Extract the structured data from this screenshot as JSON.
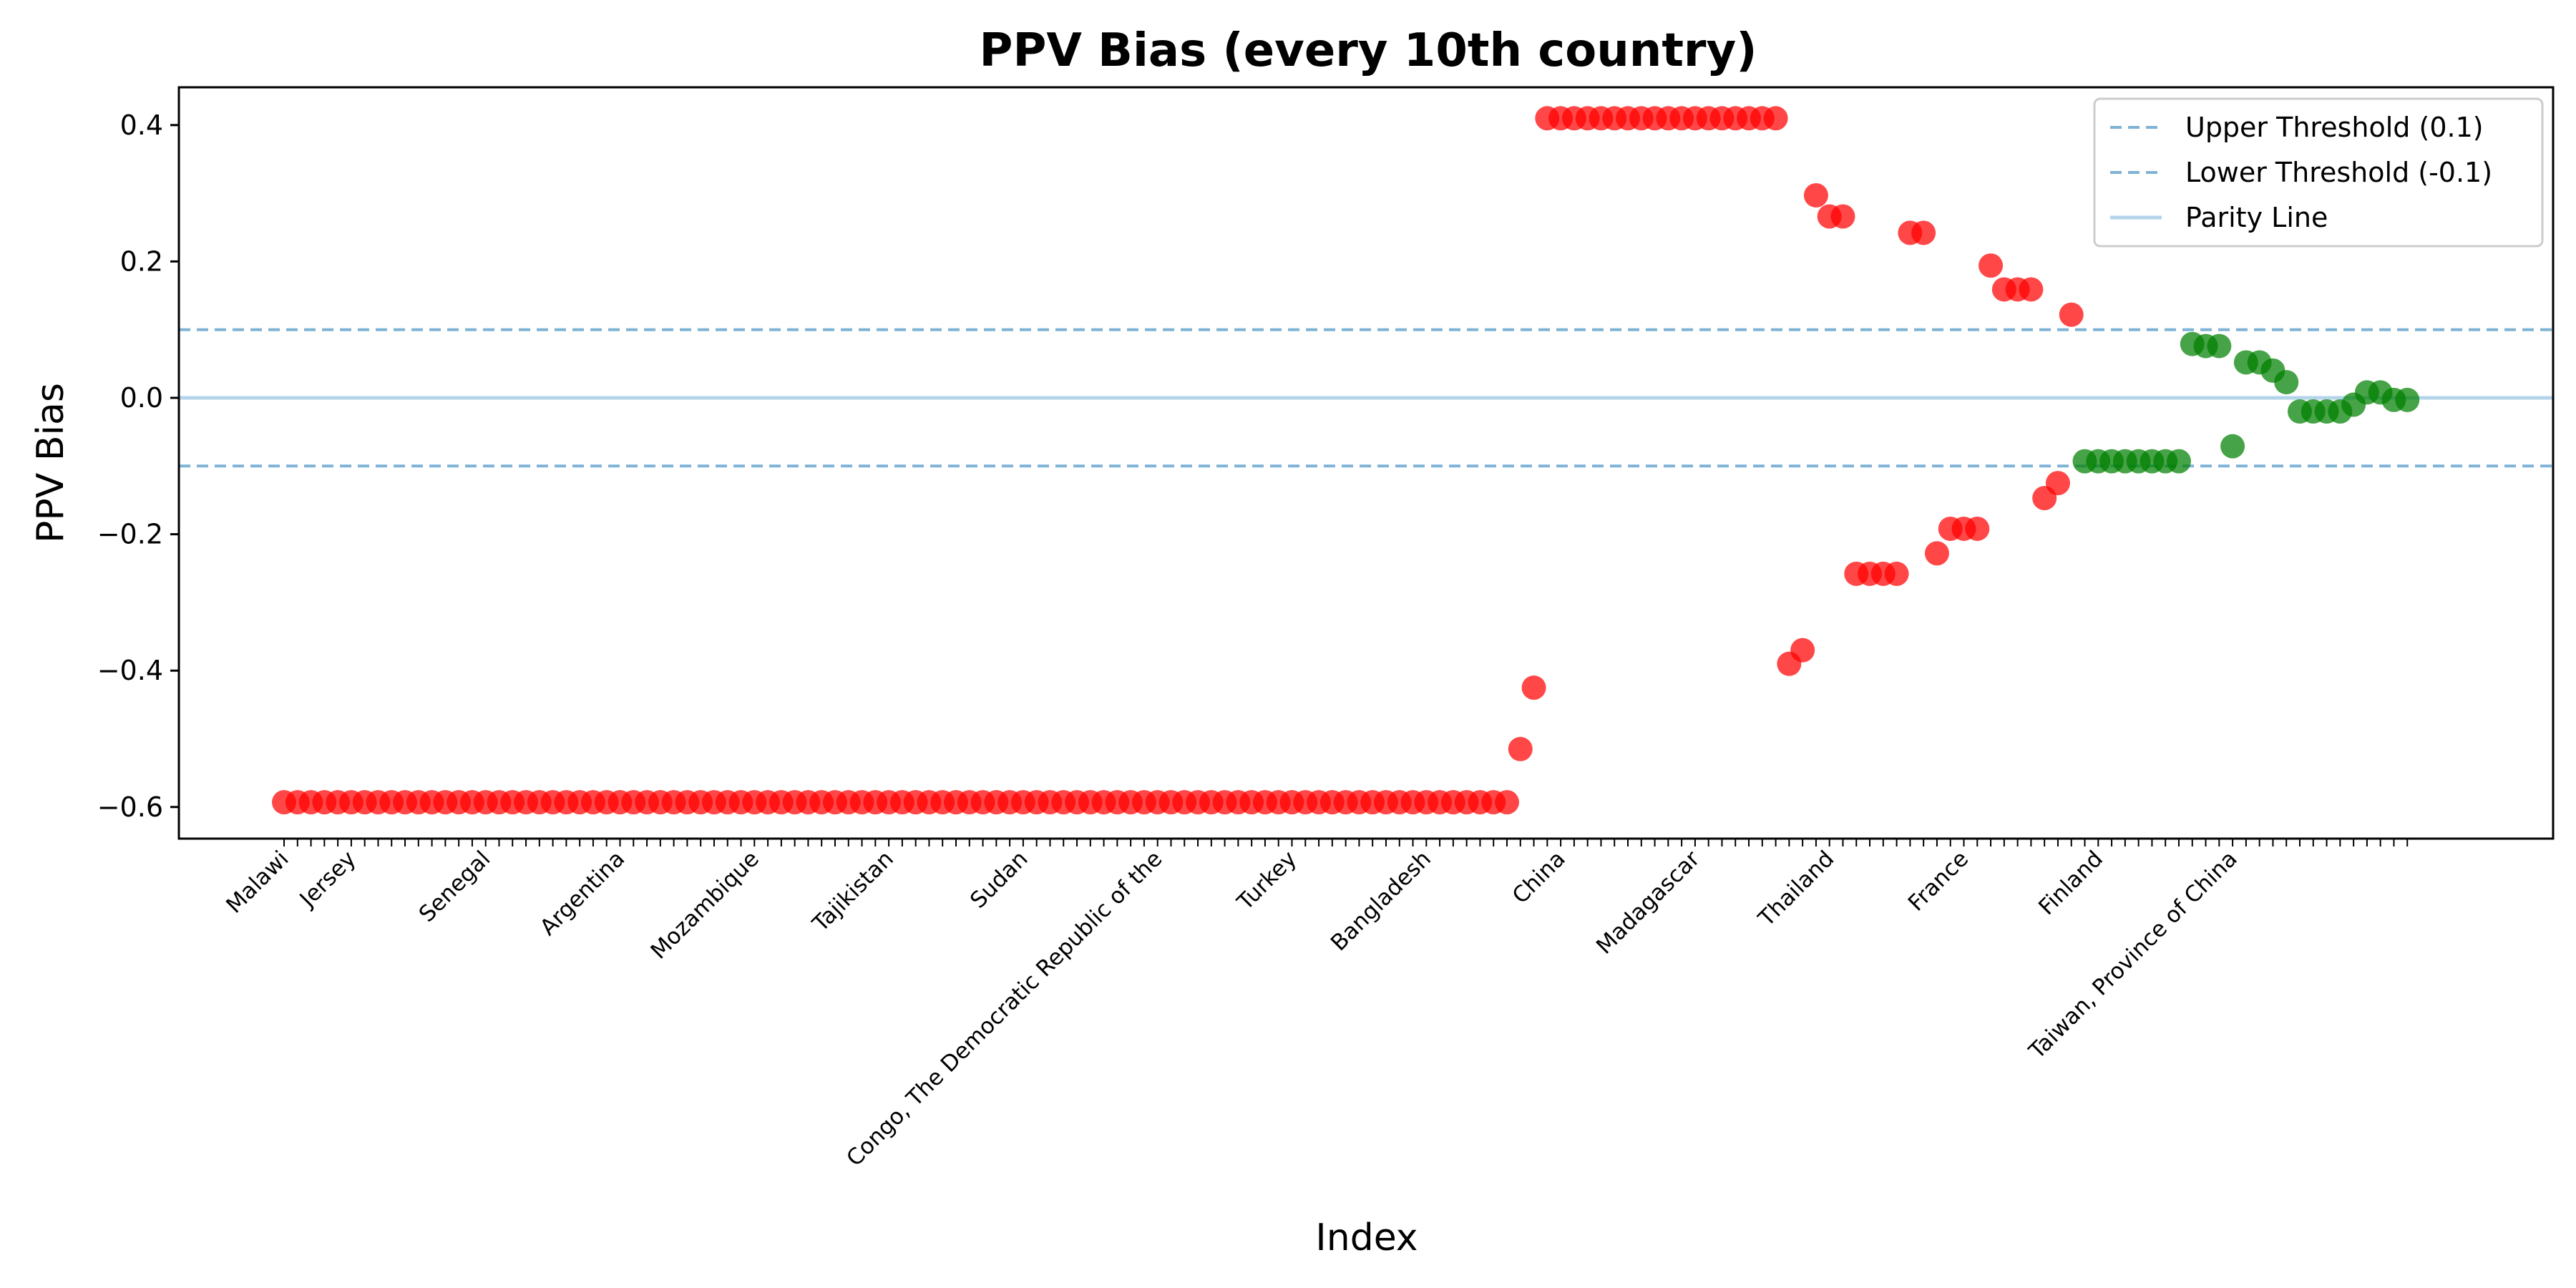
{
  "chart_data": {
    "type": "scatter",
    "title": "PPV Bias (every 10th country)",
    "xlabel": "Index",
    "ylabel": "PPV Bias",
    "ylim": [
      -0.64,
      0.46
    ],
    "yticks": [
      -0.6,
      -0.4,
      -0.2,
      0.0,
      0.2,
      0.4
    ],
    "ytick_labels": [
      "−0.6",
      "−0.4",
      "−0.2",
      "0.0",
      "0.2",
      "0.4"
    ],
    "grid": false,
    "legend_position": "top-right",
    "colors": {
      "above_threshold": "#ff0000",
      "within_threshold": "#008000",
      "threshold_line": "#7fb3d5",
      "parity_line": "#b3d4ea"
    },
    "reference_lines": [
      {
        "name": "Upper Threshold (0.1)",
        "y": 0.1,
        "style": "dashed"
      },
      {
        "name": "Lower Threshold (-0.1)",
        "y": -0.1,
        "style": "dashed"
      },
      {
        "name": "Parity Line",
        "y": 0.0,
        "style": "solid"
      }
    ],
    "x_tick_labels_legible": [
      {
        "index": 0,
        "label": "Malawi"
      },
      {
        "index": 5,
        "label": "Jersey"
      },
      {
        "index": 15,
        "label": "Senegal"
      },
      {
        "index": 25,
        "label": "Argentina"
      },
      {
        "index": 35,
        "label": "Mozambique"
      },
      {
        "index": 45,
        "label": "Tajikistan"
      },
      {
        "index": 55,
        "label": "Sudan"
      },
      {
        "index": 65,
        "label": "Congo, The Democratic Republic of the"
      },
      {
        "index": 75,
        "label": "Turkey"
      },
      {
        "index": 85,
        "label": "Bangladesh"
      },
      {
        "index": 95,
        "label": "China"
      },
      {
        "index": 105,
        "label": "Madagascar"
      },
      {
        "index": 115,
        "label": "Thailand"
      },
      {
        "index": 125,
        "label": "France"
      },
      {
        "index": 135,
        "label": "Finland"
      },
      {
        "index": 145,
        "label": "Taiwan, Province of China"
      }
    ],
    "points": [
      {
        "x": 0,
        "y": -0.593
      },
      {
        "x": 1,
        "y": -0.593
      },
      {
        "x": 2,
        "y": -0.593
      },
      {
        "x": 3,
        "y": -0.593
      },
      {
        "x": 4,
        "y": -0.593
      },
      {
        "x": 5,
        "y": -0.593
      },
      {
        "x": 6,
        "y": -0.593
      },
      {
        "x": 7,
        "y": -0.593
      },
      {
        "x": 8,
        "y": -0.593
      },
      {
        "x": 9,
        "y": -0.593
      },
      {
        "x": 10,
        "y": -0.593
      },
      {
        "x": 11,
        "y": -0.593
      },
      {
        "x": 12,
        "y": -0.593
      },
      {
        "x": 13,
        "y": -0.593
      },
      {
        "x": 14,
        "y": -0.593
      },
      {
        "x": 15,
        "y": -0.593
      },
      {
        "x": 16,
        "y": -0.593
      },
      {
        "x": 17,
        "y": -0.593
      },
      {
        "x": 18,
        "y": -0.593
      },
      {
        "x": 19,
        "y": -0.593
      },
      {
        "x": 20,
        "y": -0.593
      },
      {
        "x": 21,
        "y": -0.593
      },
      {
        "x": 22,
        "y": -0.593
      },
      {
        "x": 23,
        "y": -0.593
      },
      {
        "x": 24,
        "y": -0.593
      },
      {
        "x": 25,
        "y": -0.593
      },
      {
        "x": 26,
        "y": -0.593
      },
      {
        "x": 27,
        "y": -0.593
      },
      {
        "x": 28,
        "y": -0.593
      },
      {
        "x": 29,
        "y": -0.593
      },
      {
        "x": 30,
        "y": -0.593
      },
      {
        "x": 31,
        "y": -0.593
      },
      {
        "x": 32,
        "y": -0.593
      },
      {
        "x": 33,
        "y": -0.593
      },
      {
        "x": 34,
        "y": -0.593
      },
      {
        "x": 35,
        "y": -0.593
      },
      {
        "x": 36,
        "y": -0.593
      },
      {
        "x": 37,
        "y": -0.593
      },
      {
        "x": 38,
        "y": -0.593
      },
      {
        "x": 39,
        "y": -0.593
      },
      {
        "x": 40,
        "y": -0.593
      },
      {
        "x": 41,
        "y": -0.593
      },
      {
        "x": 42,
        "y": -0.593
      },
      {
        "x": 43,
        "y": -0.593
      },
      {
        "x": 44,
        "y": -0.593
      },
      {
        "x": 45,
        "y": -0.593
      },
      {
        "x": 46,
        "y": -0.593
      },
      {
        "x": 47,
        "y": -0.593
      },
      {
        "x": 48,
        "y": -0.593
      },
      {
        "x": 49,
        "y": -0.593
      },
      {
        "x": 50,
        "y": -0.593
      },
      {
        "x": 51,
        "y": -0.593
      },
      {
        "x": 52,
        "y": -0.593
      },
      {
        "x": 53,
        "y": -0.593
      },
      {
        "x": 54,
        "y": -0.593
      },
      {
        "x": 55,
        "y": -0.593
      },
      {
        "x": 56,
        "y": -0.593
      },
      {
        "x": 57,
        "y": -0.593
      },
      {
        "x": 58,
        "y": -0.593
      },
      {
        "x": 59,
        "y": -0.593
      },
      {
        "x": 60,
        "y": -0.593
      },
      {
        "x": 61,
        "y": -0.593
      },
      {
        "x": 62,
        "y": -0.593
      },
      {
        "x": 63,
        "y": -0.593
      },
      {
        "x": 64,
        "y": -0.593
      },
      {
        "x": 65,
        "y": -0.593
      },
      {
        "x": 66,
        "y": -0.593
      },
      {
        "x": 67,
        "y": -0.593
      },
      {
        "x": 68,
        "y": -0.593
      },
      {
        "x": 69,
        "y": -0.593
      },
      {
        "x": 70,
        "y": -0.593
      },
      {
        "x": 71,
        "y": -0.593
      },
      {
        "x": 72,
        "y": -0.593
      },
      {
        "x": 73,
        "y": -0.593
      },
      {
        "x": 74,
        "y": -0.593
      },
      {
        "x": 75,
        "y": -0.593
      },
      {
        "x": 76,
        "y": -0.593
      },
      {
        "x": 77,
        "y": -0.593
      },
      {
        "x": 78,
        "y": -0.593
      },
      {
        "x": 79,
        "y": -0.593
      },
      {
        "x": 80,
        "y": -0.593
      },
      {
        "x": 81,
        "y": -0.593
      },
      {
        "x": 82,
        "y": -0.593
      },
      {
        "x": 83,
        "y": -0.593
      },
      {
        "x": 84,
        "y": -0.593
      },
      {
        "x": 85,
        "y": -0.593
      },
      {
        "x": 86,
        "y": -0.593
      },
      {
        "x": 87,
        "y": -0.593
      },
      {
        "x": 88,
        "y": -0.593
      },
      {
        "x": 89,
        "y": -0.593
      },
      {
        "x": 90,
        "y": -0.593
      },
      {
        "x": 91,
        "y": -0.593
      },
      {
        "x": 92,
        "y": -0.515
      },
      {
        "x": 93,
        "y": -0.425
      },
      {
        "x": 94,
        "y": 0.41
      },
      {
        "x": 95,
        "y": 0.41
      },
      {
        "x": 96,
        "y": 0.41
      },
      {
        "x": 97,
        "y": 0.41
      },
      {
        "x": 98,
        "y": 0.41
      },
      {
        "x": 99,
        "y": 0.41
      },
      {
        "x": 100,
        "y": 0.41
      },
      {
        "x": 101,
        "y": 0.41
      },
      {
        "x": 102,
        "y": 0.41
      },
      {
        "x": 103,
        "y": 0.41
      },
      {
        "x": 104,
        "y": 0.41
      },
      {
        "x": 105,
        "y": 0.41
      },
      {
        "x": 106,
        "y": 0.41
      },
      {
        "x": 107,
        "y": 0.41
      },
      {
        "x": 108,
        "y": 0.41
      },
      {
        "x": 109,
        "y": 0.41
      },
      {
        "x": 110,
        "y": 0.41
      },
      {
        "x": 111,
        "y": 0.41
      },
      {
        "x": 112,
        "y": -0.39
      },
      {
        "x": 113,
        "y": -0.37
      },
      {
        "x": 114,
        "y": 0.297
      },
      {
        "x": 115,
        "y": 0.266
      },
      {
        "x": 116,
        "y": 0.266
      },
      {
        "x": 117,
        "y": -0.258
      },
      {
        "x": 118,
        "y": -0.258
      },
      {
        "x": 119,
        "y": -0.258
      },
      {
        "x": 120,
        "y": -0.258
      },
      {
        "x": 121,
        "y": 0.242
      },
      {
        "x": 122,
        "y": 0.242
      },
      {
        "x": 123,
        "y": -0.228
      },
      {
        "x": 124,
        "y": -0.192
      },
      {
        "x": 125,
        "y": -0.192
      },
      {
        "x": 126,
        "y": -0.192
      },
      {
        "x": 127,
        "y": 0.194
      },
      {
        "x": 128,
        "y": 0.159
      },
      {
        "x": 129,
        "y": 0.159
      },
      {
        "x": 130,
        "y": 0.159
      },
      {
        "x": 131,
        "y": -0.147
      },
      {
        "x": 132,
        "y": -0.125
      },
      {
        "x": 133,
        "y": 0.122
      },
      {
        "x": 134,
        "y": -0.093
      },
      {
        "x": 135,
        "y": -0.093
      },
      {
        "x": 136,
        "y": -0.093
      },
      {
        "x": 137,
        "y": -0.093
      },
      {
        "x": 138,
        "y": -0.093
      },
      {
        "x": 139,
        "y": -0.093
      },
      {
        "x": 140,
        "y": -0.093
      },
      {
        "x": 141,
        "y": -0.093
      },
      {
        "x": 142,
        "y": 0.079
      },
      {
        "x": 143,
        "y": 0.076
      },
      {
        "x": 144,
        "y": 0.076
      },
      {
        "x": 145,
        "y": -0.071
      },
      {
        "x": 146,
        "y": 0.052
      },
      {
        "x": 147,
        "y": 0.052
      },
      {
        "x": 148,
        "y": 0.04
      },
      {
        "x": 149,
        "y": 0.023
      },
      {
        "x": 150,
        "y": -0.02
      },
      {
        "x": 151,
        "y": -0.02
      },
      {
        "x": 152,
        "y": -0.02
      },
      {
        "x": 153,
        "y": -0.02
      },
      {
        "x": 154,
        "y": -0.01
      },
      {
        "x": 155,
        "y": 0.008
      },
      {
        "x": 156,
        "y": 0.008
      },
      {
        "x": 157,
        "y": -0.003
      },
      {
        "x": 158,
        "y": -0.003
      }
    ]
  }
}
